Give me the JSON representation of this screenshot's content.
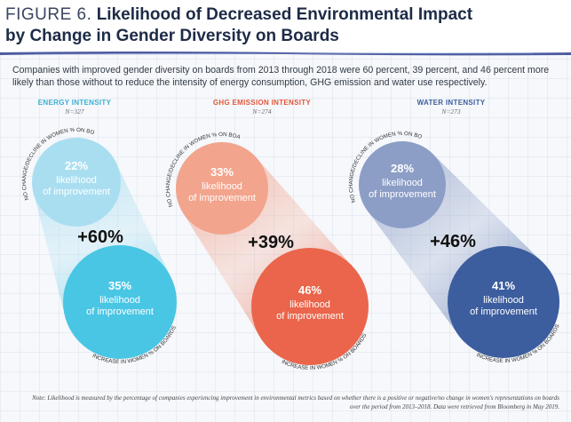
{
  "header": {
    "figure_label": "FIGURE 6.",
    "title_line1": "Likelihood of Decreased Environmental Impact",
    "title_line2": "by Change in Gender Diversity on Boards"
  },
  "intro": "Companies with improved gender diversity on boards from 2013 through 2018 were 60 percent, 39 percent, and 46 percent more likely than those without to reduce the intensity of energy consumption, GHG emission and water use respectively.",
  "colors": {
    "energy_top": "#a9def1",
    "energy_bottom": "#49c6e4",
    "ghg_top": "#f2a48d",
    "ghg_bottom": "#ea654b",
    "water_top": "#8c9ec6",
    "water_bottom": "#3c5d9e",
    "energy_head": "#3aaed2",
    "ghg_head": "#e2553a",
    "water_head": "#3c5d9e"
  },
  "chart_data": {
    "type": "bubble-comparison",
    "rotated_label_top": "NO CHANGE/DECLINE IN WOMEN % ON BOARDS",
    "rotated_label_bottom": "INCREASE IN WOMEN % ON BOARDS",
    "circle_caption": "likelihood of improvement",
    "panels": [
      {
        "name": "ENERGY INTENSITY",
        "n": "N=327",
        "no_change": 22,
        "increase": 35,
        "difference": "+60%"
      },
      {
        "name": "GHG EMISSION INTENSITY",
        "n": "N=274",
        "no_change": 33,
        "increase": 46,
        "difference": "+39%"
      },
      {
        "name": "WATER INTENSITY",
        "n": "N=273",
        "no_change": 28,
        "increase": 41,
        "difference": "+46%"
      }
    ]
  },
  "note": "Note: Likelihood is measured by the percentage of companies experiencing improvement in environmental metrics based on whether there is a positive or negative/no change in women's representations on boards over the period from 2013–2018. Data were retrieved from Bloomberg in May 2019."
}
